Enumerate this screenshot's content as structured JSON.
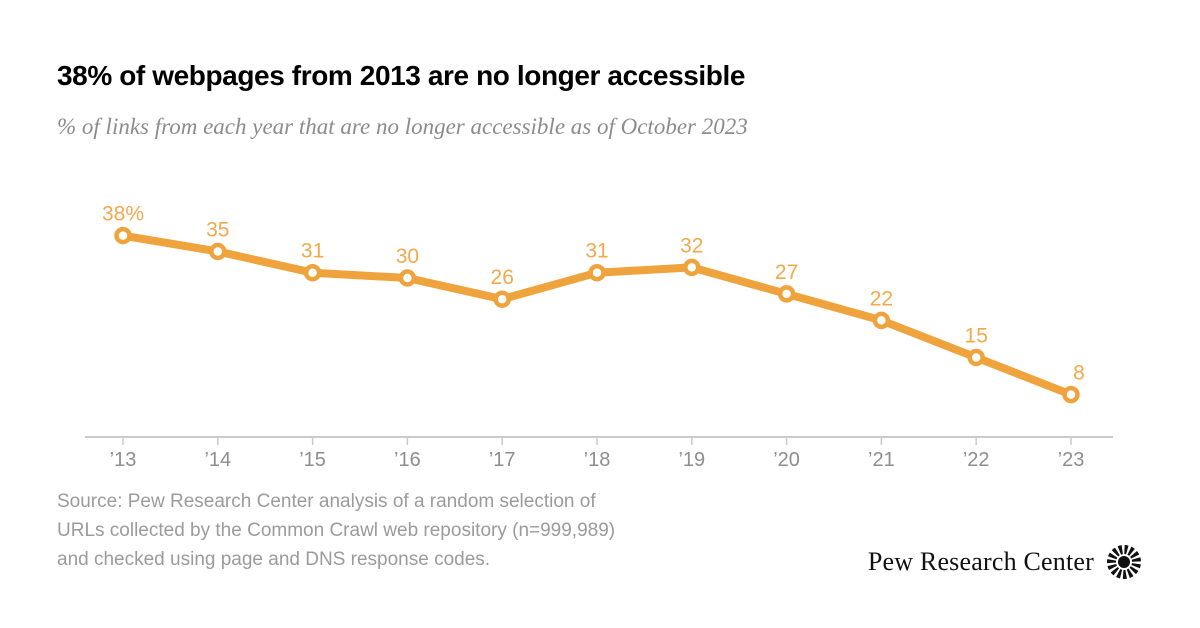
{
  "header": {
    "title": "38% of webpages from 2013 are no longer accessible",
    "subtitle": "% of links from each year that are no longer accessible as of October 2023"
  },
  "chart_data": {
    "type": "line",
    "title": "38% of webpages from 2013 are no longer accessible",
    "subtitle": "% of links from each year that are no longer accessible as of October 2023",
    "categories": [
      "’13",
      "’14",
      "’15",
      "’16",
      "’17",
      "’18",
      "’19",
      "’20",
      "’21",
      "’22",
      "’23"
    ],
    "values": [
      38,
      35,
      31,
      30,
      26,
      31,
      32,
      27,
      22,
      15,
      8
    ],
    "point_labels": [
      "38%",
      "35",
      "31",
      "30",
      "26",
      "31",
      "32",
      "27",
      "22",
      "15",
      "8"
    ],
    "xlabel": "",
    "ylabel": "",
    "ylim": [
      0,
      50
    ],
    "grid": false,
    "legend": "none",
    "colors": {
      "line": "#EFA33C",
      "marker_fill": "#FFFFFF",
      "marker_stroke": "#EFA33C",
      "point_label": "#F2A94C",
      "axis_line": "#CBCBCB",
      "tick_label": "#8E8E8E"
    }
  },
  "footer": {
    "source_lines": [
      "Source: Pew Research Center analysis of a random selection of",
      "URLs collected by the Common Crawl web repository (n=999,989)",
      "and checked using page and DNS response codes."
    ]
  },
  "branding": {
    "name": "Pew Research Center"
  }
}
